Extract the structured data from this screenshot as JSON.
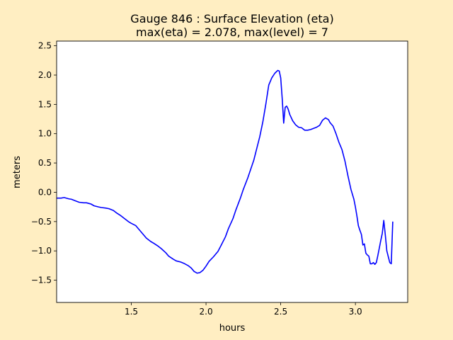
{
  "chart_data": {
    "type": "line",
    "title_line1": "Gauge 846 : Surface Elevation (eta)",
    "title_line2": "max(eta) =   2.078,    max(level) = 7",
    "xlabel": "hours",
    "ylabel": "meters",
    "xlim": [
      1.0,
      3.35
    ],
    "ylim": [
      -1.88,
      2.58
    ],
    "xticks": [
      1.5,
      2.0,
      2.5,
      3.0
    ],
    "xtick_labels": [
      "1.5",
      "2.0",
      "2.5",
      "3.0"
    ],
    "yticks": [
      -1.5,
      -1.0,
      -0.5,
      0.0,
      0.5,
      1.0,
      1.5,
      2.0,
      2.5
    ],
    "ytick_labels": [
      "−1.5",
      "−1.0",
      "−0.5",
      "0.0",
      "0.5",
      "1.0",
      "1.5",
      "2.0",
      "2.5"
    ],
    "grid": false,
    "line_color": "#0000ff",
    "series": [
      {
        "x": [
          1.0,
          1.03,
          1.05,
          1.08,
          1.1,
          1.13,
          1.15,
          1.18,
          1.2,
          1.23,
          1.25,
          1.28,
          1.3,
          1.33,
          1.35,
          1.38,
          1.4,
          1.43,
          1.45,
          1.48,
          1.5,
          1.53,
          1.55,
          1.58,
          1.6,
          1.63,
          1.65,
          1.68,
          1.7,
          1.73,
          1.75,
          1.78,
          1.8,
          1.83,
          1.85,
          1.88,
          1.9,
          1.92,
          1.94,
          1.96,
          1.98,
          2.0,
          2.02,
          2.05,
          2.08,
          2.1,
          2.13,
          2.15,
          2.18,
          2.2,
          2.23,
          2.25,
          2.28,
          2.3,
          2.32,
          2.34,
          2.36,
          2.38,
          2.4,
          2.42,
          2.44,
          2.46,
          2.48,
          2.49,
          2.5,
          2.51,
          2.52,
          2.53,
          2.54,
          2.55,
          2.56,
          2.58,
          2.6,
          2.62,
          2.64,
          2.66,
          2.68,
          2.7,
          2.72,
          2.74,
          2.76,
          2.78,
          2.8,
          2.82,
          2.83,
          2.85,
          2.87,
          2.89,
          2.91,
          2.93,
          2.95,
          2.97,
          2.99,
          3.0,
          3.01,
          3.02,
          3.03,
          3.04,
          3.05,
          3.06,
          3.07,
          3.08,
          3.09,
          3.1,
          3.11,
          3.12,
          3.13,
          3.14,
          3.15,
          3.16,
          3.17,
          3.18,
          3.19,
          3.2,
          3.21,
          3.22,
          3.23,
          3.24,
          3.25
        ],
        "y": [
          -0.1,
          -0.1,
          -0.09,
          -0.11,
          -0.12,
          -0.15,
          -0.17,
          -0.18,
          -0.18,
          -0.2,
          -0.23,
          -0.25,
          -0.26,
          -0.27,
          -0.28,
          -0.31,
          -0.35,
          -0.4,
          -0.44,
          -0.5,
          -0.53,
          -0.57,
          -0.63,
          -0.72,
          -0.78,
          -0.84,
          -0.87,
          -0.92,
          -0.96,
          -1.03,
          -1.09,
          -1.14,
          -1.17,
          -1.19,
          -1.21,
          -1.25,
          -1.29,
          -1.35,
          -1.38,
          -1.37,
          -1.33,
          -1.26,
          -1.18,
          -1.1,
          -1.01,
          -0.91,
          -0.76,
          -0.62,
          -0.45,
          -0.3,
          -0.1,
          0.05,
          0.25,
          0.4,
          0.55,
          0.75,
          0.95,
          1.2,
          1.5,
          1.83,
          1.95,
          2.03,
          2.08,
          2.07,
          1.95,
          1.6,
          1.18,
          1.45,
          1.47,
          1.42,
          1.33,
          1.22,
          1.15,
          1.11,
          1.1,
          1.06,
          1.06,
          1.07,
          1.09,
          1.11,
          1.14,
          1.23,
          1.27,
          1.24,
          1.19,
          1.13,
          1.0,
          0.85,
          0.73,
          0.53,
          0.28,
          0.05,
          -0.12,
          -0.25,
          -0.4,
          -0.57,
          -0.65,
          -0.72,
          -0.9,
          -0.88,
          -1.04,
          -1.07,
          -1.09,
          -1.22,
          -1.22,
          -1.2,
          -1.23,
          -1.2,
          -1.08,
          -0.95,
          -0.82,
          -0.7,
          -0.48,
          -0.72,
          -1.0,
          -1.1,
          -1.2,
          -1.22,
          -0.5
        ]
      }
    ]
  }
}
